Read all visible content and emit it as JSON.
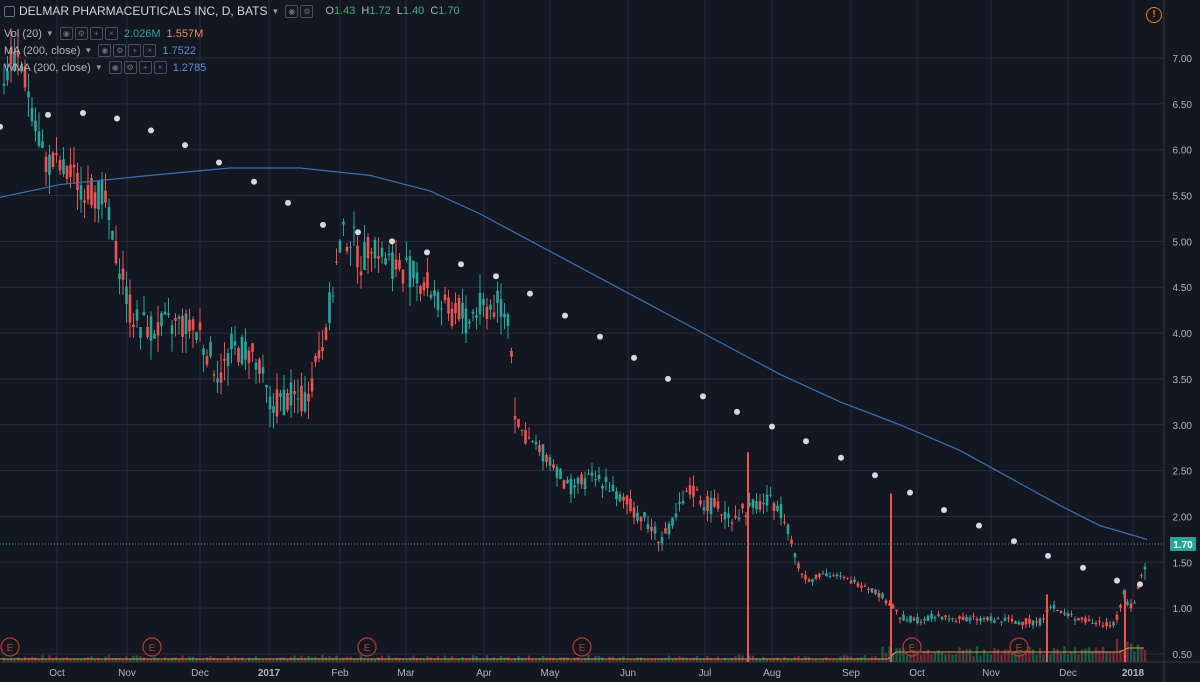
{
  "legend": {
    "symbol": "DELMAR PHARMACEUTICALS INC, D, BATS",
    "open_label": "O",
    "open": "1.43",
    "high_label": "H",
    "high": "1.72",
    "low_label": "L",
    "low": "1.40",
    "close_label": "C",
    "close": "1.70",
    "vol_label": "Vol (20)",
    "vol_value": "2.026M",
    "vol_ma": "1.557M",
    "ma_label": "MA (200, close)",
    "ma_value": "1.7522",
    "wma_label": "WMA (200, close)",
    "wma_value": "1.2785",
    "warning_icon": "!"
  },
  "colors": {
    "background": "#131722",
    "grid": "#262b38",
    "up": "#26a69a",
    "down": "#ef5350",
    "ma": "#3f6eb0",
    "wma_dots": "#d8d8d8",
    "price_tag": "#26a69a",
    "event": "#c0392b"
  },
  "chart_data": {
    "type": "candlestick",
    "y_ticks": [
      "7.00",
      "6.50",
      "6.00",
      "5.50",
      "5.00",
      "4.50",
      "4.00",
      "3.50",
      "3.00",
      "2.50",
      "2.00",
      "1.50",
      "1.00",
      "0.50"
    ],
    "ylim": [
      0.45,
      7.45
    ],
    "x_ticks": [
      "Oct",
      "Nov",
      "Dec",
      "2017",
      "Feb",
      "Mar",
      "Apr",
      "May",
      "Jun",
      "Jul",
      "Aug",
      "Sep",
      "Oct",
      "Nov",
      "Dec",
      "2018"
    ],
    "last_price": "1.70",
    "grid": true,
    "series": [
      {
        "name": "MA (200, close)",
        "points": [
          [
            0,
            5.48
          ],
          [
            60,
            5.62
          ],
          [
            150,
            5.72
          ],
          [
            230,
            5.8
          ],
          [
            300,
            5.8
          ],
          [
            370,
            5.72
          ],
          [
            430,
            5.55
          ],
          [
            480,
            5.3
          ],
          [
            540,
            4.95
          ],
          [
            600,
            4.6
          ],
          [
            660,
            4.25
          ],
          [
            720,
            3.9
          ],
          [
            780,
            3.55
          ],
          [
            840,
            3.25
          ],
          [
            900,
            3.0
          ],
          [
            960,
            2.72
          ],
          [
            1010,
            2.42
          ],
          [
            1060,
            2.12
          ],
          [
            1100,
            1.9
          ],
          [
            1147,
            1.75
          ]
        ]
      },
      {
        "name": "WMA (200, close)",
        "points": [
          [
            0,
            6.25
          ],
          [
            48,
            6.38
          ],
          [
            83,
            6.4
          ],
          [
            117,
            6.34
          ],
          [
            151,
            6.21
          ],
          [
            185,
            6.05
          ],
          [
            219,
            5.86
          ],
          [
            254,
            5.65
          ],
          [
            288,
            5.42
          ],
          [
            323,
            5.18
          ],
          [
            358,
            5.1
          ],
          [
            392,
            5.0
          ],
          [
            427,
            4.88
          ],
          [
            461,
            4.75
          ],
          [
            496,
            4.62
          ],
          [
            530,
            4.43
          ],
          [
            565,
            4.19
          ],
          [
            600,
            3.96
          ],
          [
            634,
            3.73
          ],
          [
            668,
            3.5
          ],
          [
            703,
            3.31
          ],
          [
            737,
            3.14
          ],
          [
            772,
            2.98
          ],
          [
            806,
            2.82
          ],
          [
            841,
            2.64
          ],
          [
            875,
            2.45
          ],
          [
            910,
            2.26
          ],
          [
            944,
            2.07
          ],
          [
            979,
            1.9
          ],
          [
            1014,
            1.73
          ],
          [
            1048,
            1.57
          ],
          [
            1083,
            1.44
          ],
          [
            1117,
            1.3
          ],
          [
            1140,
            1.26
          ]
        ]
      }
    ],
    "ohlc_path": [
      [
        4,
        6.8
      ],
      [
        14,
        7.0
      ],
      [
        22,
        6.9
      ],
      [
        34,
        6.4
      ],
      [
        44,
        5.9
      ],
      [
        58,
        5.8
      ],
      [
        72,
        5.7
      ],
      [
        90,
        5.55
      ],
      [
        104,
        5.5
      ],
      [
        114,
        4.9
      ],
      [
        122,
        4.7
      ],
      [
        128,
        4.3
      ],
      [
        138,
        4.1
      ],
      [
        160,
        4.05
      ],
      [
        180,
        4.1
      ],
      [
        200,
        4.0
      ],
      [
        212,
        3.7
      ],
      [
        222,
        3.55
      ],
      [
        232,
        3.85
      ],
      [
        250,
        3.8
      ],
      [
        262,
        3.5
      ],
      [
        270,
        3.2
      ],
      [
        288,
        3.3
      ],
      [
        304,
        3.25
      ],
      [
        314,
        3.6
      ],
      [
        322,
        3.9
      ],
      [
        330,
        4.3
      ],
      [
        336,
        4.7
      ],
      [
        342,
        5.05
      ],
      [
        352,
        5.05
      ],
      [
        362,
        4.75
      ],
      [
        372,
        5.05
      ],
      [
        382,
        4.85
      ],
      [
        394,
        4.75
      ],
      [
        406,
        4.7
      ],
      [
        418,
        4.6
      ],
      [
        430,
        4.5
      ],
      [
        440,
        4.3
      ],
      [
        450,
        4.2
      ],
      [
        458,
        4.3
      ],
      [
        466,
        4.1
      ],
      [
        476,
        4.25
      ],
      [
        490,
        4.3
      ],
      [
        502,
        4.3
      ],
      [
        510,
        4.15
      ],
      [
        516,
        3.0
      ],
      [
        524,
        2.9
      ],
      [
        536,
        2.75
      ],
      [
        548,
        2.65
      ],
      [
        558,
        2.5
      ],
      [
        566,
        2.3
      ],
      [
        576,
        2.35
      ],
      [
        590,
        2.4
      ],
      [
        606,
        2.4
      ],
      [
        618,
        2.2
      ],
      [
        632,
        2.1
      ],
      [
        646,
        1.95
      ],
      [
        656,
        1.8
      ],
      [
        668,
        1.8
      ],
      [
        680,
        2.1
      ],
      [
        692,
        2.3
      ],
      [
        704,
        2.15
      ],
      [
        716,
        2.1
      ],
      [
        728,
        2.0
      ],
      [
        740,
        2.05
      ],
      [
        752,
        2.1
      ],
      [
        764,
        2.15
      ],
      [
        778,
        2.15
      ],
      [
        788,
        1.9
      ],
      [
        794,
        1.6
      ],
      [
        800,
        1.4
      ],
      [
        810,
        1.3
      ],
      [
        822,
        1.4
      ],
      [
        834,
        1.35
      ],
      [
        850,
        1.3
      ],
      [
        866,
        1.25
      ],
      [
        880,
        1.15
      ],
      [
        890,
        1.05
      ],
      [
        900,
        0.9
      ],
      [
        916,
        0.87
      ],
      [
        930,
        0.9
      ],
      [
        944,
        0.9
      ],
      [
        960,
        0.88
      ],
      [
        980,
        0.88
      ],
      [
        1000,
        0.87
      ],
      [
        1020,
        0.85
      ],
      [
        1040,
        0.85
      ],
      [
        1050,
        1.05
      ],
      [
        1060,
        0.95
      ],
      [
        1076,
        0.9
      ],
      [
        1090,
        0.85
      ],
      [
        1104,
        0.83
      ],
      [
        1116,
        0.85
      ],
      [
        1124,
        1.15
      ],
      [
        1130,
        1.0
      ],
      [
        1136,
        1.1
      ],
      [
        1140,
        1.3
      ],
      [
        1144,
        1.45
      ],
      [
        1148,
        1.7
      ]
    ],
    "volume_spikes": [
      [
        891,
        2.25
      ],
      [
        1047,
        1.15
      ],
      [
        1125,
        1.2
      ],
      [
        748,
        2.7
      ]
    ],
    "events_label": "E",
    "events_x": [
      10,
      152,
      367,
      582,
      912,
      1019
    ]
  }
}
